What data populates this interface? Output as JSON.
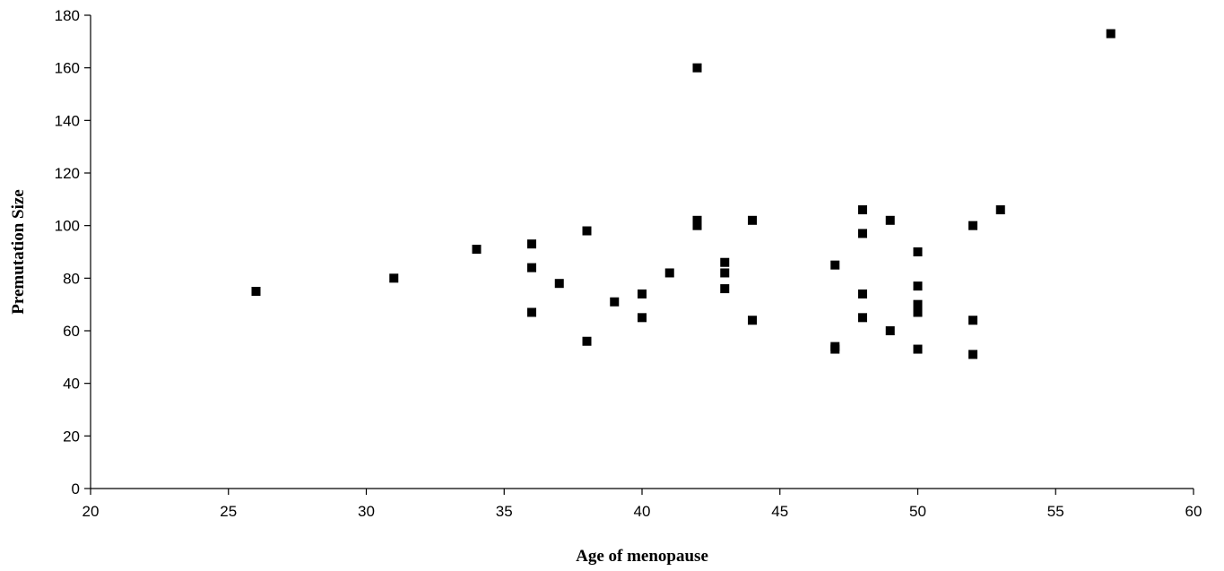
{
  "chart_data": {
    "type": "scatter",
    "xlabel": "Age of menopause",
    "ylabel": "Premutation Size",
    "xlim": [
      20,
      60
    ],
    "ylim": [
      0,
      180
    ],
    "xticks": [
      20,
      25,
      30,
      35,
      40,
      45,
      50,
      55,
      60
    ],
    "yticks": [
      0,
      20,
      40,
      60,
      80,
      100,
      120,
      140,
      160,
      180
    ],
    "grid": false,
    "marker": "square",
    "marker_color": "#000000",
    "series": [
      {
        "points": [
          [
            26,
            75
          ],
          [
            31,
            80
          ],
          [
            34,
            91
          ],
          [
            36,
            93
          ],
          [
            36,
            84
          ],
          [
            36,
            67
          ],
          [
            37,
            78
          ],
          [
            38,
            98
          ],
          [
            38,
            56
          ],
          [
            39,
            71
          ],
          [
            40,
            74
          ],
          [
            40,
            65
          ],
          [
            41,
            82
          ],
          [
            42,
            160
          ],
          [
            42,
            102
          ],
          [
            42,
            100
          ],
          [
            43,
            86
          ],
          [
            43,
            82
          ],
          [
            43,
            76
          ],
          [
            44,
            102
          ],
          [
            44,
            64
          ],
          [
            47,
            85
          ],
          [
            47,
            54
          ],
          [
            47,
            53
          ],
          [
            48,
            106
          ],
          [
            48,
            97
          ],
          [
            48,
            74
          ],
          [
            48,
            65
          ],
          [
            49,
            102
          ],
          [
            49,
            60
          ],
          [
            50,
            90
          ],
          [
            50,
            77
          ],
          [
            50,
            70
          ],
          [
            50,
            67
          ],
          [
            50,
            53
          ],
          [
            52,
            100
          ],
          [
            52,
            64
          ],
          [
            52,
            51
          ],
          [
            53,
            106
          ],
          [
            57,
            173
          ]
        ]
      }
    ]
  }
}
